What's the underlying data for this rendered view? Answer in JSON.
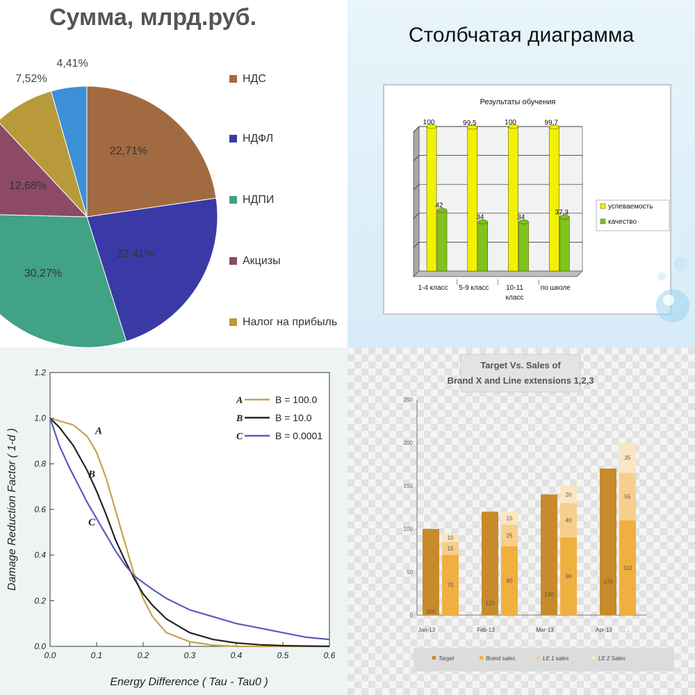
{
  "chart_data": [
    {
      "type": "pie",
      "title": "Сумма, млрд.руб.",
      "slices": [
        {
          "label": "НДС",
          "value": 22.71,
          "value_label": "22,71%",
          "color": "#a26a40"
        },
        {
          "label": "НДФЛ",
          "value": 22.41,
          "value_label": "22,41%",
          "color": "#3a3aa6"
        },
        {
          "label": "НДПИ",
          "value": 30.27,
          "value_label": "30,27%",
          "color": "#41a285"
        },
        {
          "label": "Акцизы",
          "value": 12.68,
          "value_label": "12,68%",
          "color": "#8c4a66"
        },
        {
          "label": "Налог на прибыль",
          "value": 7.52,
          "value_label": "7,52%",
          "color": "#b89a3a"
        },
        {
          "label": "",
          "value": 4.41,
          "value_label": "4,41%",
          "color": "#3d8fd8"
        }
      ],
      "legend_position": "right"
    },
    {
      "type": "bar",
      "slide_title": "Столбчатая диаграмма",
      "title": "Результаты обучения",
      "categories": [
        "1-4 класс",
        "5-9 класс",
        "10-11 класс",
        "по школе"
      ],
      "series": [
        {
          "name": "успеваемость",
          "values": [
            100,
            99.5,
            100,
            99.7
          ],
          "labels": [
            "100",
            "99,5",
            "100",
            "99,7"
          ],
          "color": "#f2f200"
        },
        {
          "name": "качество",
          "values": [
            42,
            34,
            34,
            37.3
          ],
          "labels": [
            "42",
            "34",
            "34",
            "37,3"
          ],
          "color": "#7fc31c"
        }
      ],
      "ylim": [
        0,
        100
      ],
      "grid": true,
      "legend_position": "right"
    },
    {
      "type": "line",
      "xlabel": "Energy Difference ( Tau - Tau0 )",
      "ylabel": "Damage Reduction Factor ( 1-d )",
      "xlim": [
        0,
        0.6
      ],
      "ylim": [
        0,
        1.2
      ],
      "xticks": [
        "0.0",
        "0.1",
        "0.2",
        "0.3",
        "0.4",
        "0.5",
        "0.6"
      ],
      "yticks": [
        "0.0",
        "0.2",
        "0.4",
        "0.6",
        "0.8",
        "1.0",
        "1.2"
      ],
      "series": [
        {
          "name": "A",
          "legend": "B = 100.0",
          "color": "#c8a24a",
          "points": [
            [
              0,
              1.0
            ],
            [
              0.05,
              0.97
            ],
            [
              0.08,
              0.92
            ],
            [
              0.1,
              0.85
            ],
            [
              0.12,
              0.74
            ],
            [
              0.14,
              0.6
            ],
            [
              0.16,
              0.46
            ],
            [
              0.18,
              0.32
            ],
            [
              0.2,
              0.21
            ],
            [
              0.22,
              0.13
            ],
            [
              0.25,
              0.06
            ],
            [
              0.3,
              0.02
            ],
            [
              0.35,
              0.005
            ],
            [
              0.4,
              0
            ],
            [
              0.6,
              0
            ]
          ]
        },
        {
          "name": "B",
          "legend": "B = 10.0",
          "color": "#222222",
          "points": [
            [
              0,
              1.0
            ],
            [
              0.02,
              0.96
            ],
            [
              0.05,
              0.88
            ],
            [
              0.08,
              0.77
            ],
            [
              0.1,
              0.68
            ],
            [
              0.12,
              0.58
            ],
            [
              0.14,
              0.47
            ],
            [
              0.16,
              0.38
            ],
            [
              0.18,
              0.3
            ],
            [
              0.2,
              0.23
            ],
            [
              0.22,
              0.18
            ],
            [
              0.25,
              0.12
            ],
            [
              0.3,
              0.06
            ],
            [
              0.35,
              0.03
            ],
            [
              0.4,
              0.015
            ],
            [
              0.45,
              0.007
            ],
            [
              0.5,
              0.003
            ],
            [
              0.6,
              0
            ]
          ]
        },
        {
          "name": "C",
          "legend": "B = 0.0001",
          "color": "#5a58c0",
          "points": [
            [
              0,
              1.0
            ],
            [
              0.02,
              0.88
            ],
            [
              0.04,
              0.79
            ],
            [
              0.06,
              0.71
            ],
            [
              0.08,
              0.63
            ],
            [
              0.1,
              0.56
            ],
            [
              0.12,
              0.49
            ],
            [
              0.14,
              0.42
            ],
            [
              0.16,
              0.36
            ],
            [
              0.18,
              0.31
            ],
            [
              0.2,
              0.28
            ],
            [
              0.22,
              0.25
            ],
            [
              0.25,
              0.21
            ],
            [
              0.3,
              0.16
            ],
            [
              0.35,
              0.13
            ],
            [
              0.4,
              0.1
            ],
            [
              0.45,
              0.08
            ],
            [
              0.5,
              0.06
            ],
            [
              0.55,
              0.04
            ],
            [
              0.6,
              0.03
            ]
          ]
        }
      ],
      "labels_in_plot": [
        "A",
        "B",
        "C"
      ],
      "legend_position": "top-right"
    },
    {
      "type": "bar",
      "title_line1": "Target Vs. Sales of",
      "title_line2": "Brand X  and Line extensions 1,2,3",
      "categories": [
        "Jan-13",
        "Feb-13",
        "Mar-13",
        "Apr-13"
      ],
      "extra_tick": ".",
      "ylim": [
        0,
        250
      ],
      "yticks": [
        "0",
        "50",
        "100",
        "150",
        "200",
        "250"
      ],
      "target": {
        "name": "Target",
        "values": [
          100,
          120,
          140,
          170
        ],
        "color": "#c88a2a"
      },
      "stack": [
        {
          "name": "Brand sales",
          "values": [
            70,
            80,
            90,
            110
          ],
          "color": "#f0b040"
        },
        {
          "name": "LE 1 sales",
          "values": [
            15,
            25,
            40,
            55
          ],
          "color": "#f6cf8c"
        },
        {
          "name": "LE 2 Sales",
          "values": [
            10,
            15,
            20,
            35
          ],
          "color": "#fbe6c2"
        }
      ],
      "legend_position": "bottom"
    }
  ]
}
